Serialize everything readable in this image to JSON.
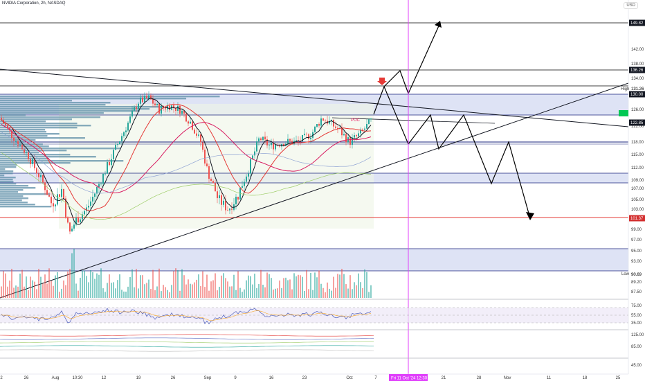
{
  "header": {
    "title": "NVIDIA Corporation, 2h, NASDAQ",
    "currency": "USD"
  },
  "chart_data": {
    "type": "line",
    "symbol": "NVDA",
    "price_axis_labels": [
      "149.82",
      "142.00",
      "138.00",
      "136.26",
      "134.00",
      "131.26",
      "130.00",
      "126.00",
      "122.85",
      "122.00",
      "118.00",
      "115.00",
      "112.00",
      "109.00",
      "107.00",
      "105.00",
      "103.00",
      "101.37",
      "99.00",
      "97.00",
      "95.00",
      "93.00",
      "90.69",
      "89.20",
      "87.50"
    ],
    "price_tags": [
      {
        "value": "149.82",
        "bg": "#131722",
        "fg": "#ffffff",
        "name": "upper-target-tag"
      },
      {
        "value": "136.26",
        "bg": "#131722",
        "fg": "#ffffff",
        "name": "resistance-tag"
      },
      {
        "value": "130.00",
        "bg": "#131722",
        "fg": "#ffffff",
        "name": "level-130-tag"
      },
      {
        "value": "122.85",
        "bg": "#131722",
        "fg": "#ffffff",
        "name": "level-122-tag"
      },
      {
        "value": "101.37",
        "bg": "#d32f2f",
        "fg": "#ffffff",
        "name": "support-tag"
      }
    ],
    "high_label": "High",
    "high_value": "131.26",
    "low_label": "Low",
    "low_value": "90.69",
    "poc_label": "POC",
    "rsi_axis_labels": [
      "75.00",
      "55.00",
      "35.00"
    ],
    "osc_axis_labels": [
      "125.00",
      "85.00",
      "45.00"
    ],
    "x_axis_labels": [
      "2",
      "26",
      "Aug",
      "10:30",
      "12",
      "19",
      "26",
      "Sep",
      "9",
      "16",
      "23",
      "Oct",
      "7",
      "21",
      "28",
      "Nov",
      "11",
      "18",
      "25"
    ],
    "crosshair_label": "Fri 11 Oct '24  12:30",
    "colors": {
      "up": "#26a69a",
      "down": "#ef5350",
      "zone": "#d6dcf2",
      "crosshair": "#e040fb",
      "support": "#e53935"
    }
  }
}
